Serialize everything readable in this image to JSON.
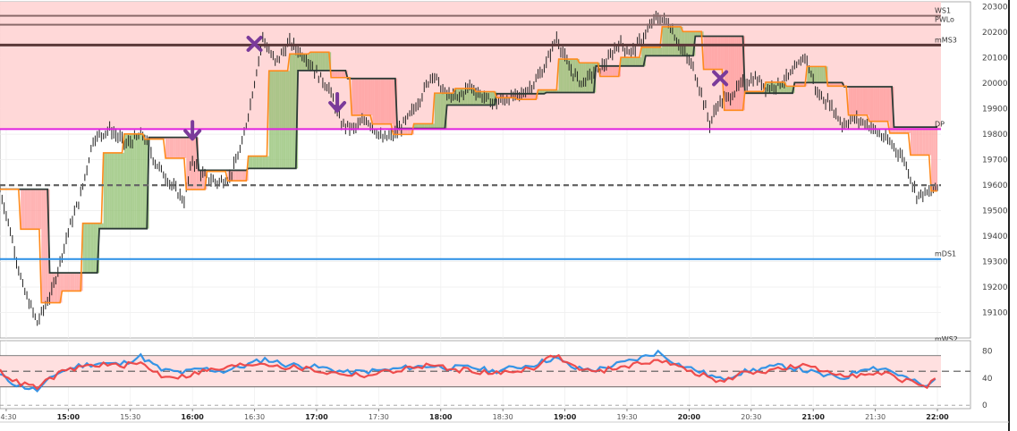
{
  "chart_data": [
    {
      "type": "candlestick",
      "title": "",
      "xlabel": "",
      "ylabel": "",
      "ylim": [
        19000,
        20320
      ],
      "y_ticks": [
        19100,
        19200,
        19300,
        19400,
        19500,
        19600,
        19700,
        19800,
        19900,
        20000,
        20100,
        20200,
        20300
      ],
      "x_ticks": [
        {
          "label": "14:30",
          "major": false
        },
        {
          "label": "15:00",
          "major": true
        },
        {
          "label": "15:30",
          "major": false
        },
        {
          "label": "16:00",
          "major": true
        },
        {
          "label": "16:30",
          "major": false
        },
        {
          "label": "17:00",
          "major": true
        },
        {
          "label": "17:30",
          "major": false
        },
        {
          "label": "18:00",
          "major": true
        },
        {
          "label": "18:30",
          "major": false
        },
        {
          "label": "19:00",
          "major": true
        },
        {
          "label": "19:30",
          "major": false
        },
        {
          "label": "20:00",
          "major": true
        },
        {
          "label": "20:30",
          "major": false
        },
        {
          "label": "21:00",
          "major": true
        },
        {
          "label": "21:30",
          "major": false
        },
        {
          "label": "22:00",
          "major": true
        }
      ],
      "price_path": [
        [
          "14:25",
          19650
        ],
        [
          "14:32",
          19420
        ],
        [
          "14:38",
          19200
        ],
        [
          "14:45",
          19060
        ],
        [
          "14:52",
          19180
        ],
        [
          "15:00",
          19420
        ],
        [
          "15:06",
          19560
        ],
        [
          "15:12",
          19780
        ],
        [
          "15:20",
          19820
        ],
        [
          "15:28",
          19760
        ],
        [
          "15:36",
          19800
        ],
        [
          "15:42",
          19690
        ],
        [
          "15:50",
          19600
        ],
        [
          "15:56",
          19540
        ],
        [
          "16:00",
          19700
        ],
        [
          "16:05",
          19640
        ],
        [
          "16:12",
          19610
        ],
        [
          "16:18",
          19630
        ],
        [
          "16:24",
          19760
        ],
        [
          "16:28",
          19920
        ],
        [
          "16:34",
          20180
        ],
        [
          "16:40",
          20080
        ],
        [
          "16:47",
          20160
        ],
        [
          "16:55",
          20100
        ],
        [
          "17:00",
          20040
        ],
        [
          "17:06",
          19980
        ],
        [
          "17:12",
          19840
        ],
        [
          "17:18",
          19820
        ],
        [
          "17:24",
          19860
        ],
        [
          "17:32",
          19780
        ],
        [
          "17:38",
          19800
        ],
        [
          "17:44",
          19860
        ],
        [
          "17:50",
          19940
        ],
        [
          "17:56",
          20040
        ],
        [
          "18:02",
          19960
        ],
        [
          "18:08",
          19940
        ],
        [
          "18:14",
          19990
        ],
        [
          "18:20",
          19950
        ],
        [
          "18:26",
          19920
        ],
        [
          "18:32",
          19940
        ],
        [
          "18:38",
          19950
        ],
        [
          "18:44",
          19990
        ],
        [
          "18:50",
          20060
        ],
        [
          "18:56",
          20180
        ],
        [
          "19:02",
          20060
        ],
        [
          "19:08",
          20000
        ],
        [
          "19:14",
          20040
        ],
        [
          "19:20",
          20080
        ],
        [
          "19:26",
          20160
        ],
        [
          "19:32",
          20120
        ],
        [
          "19:38",
          20180
        ],
        [
          "19:44",
          20260
        ],
        [
          "19:50",
          20240
        ],
        [
          "19:56",
          20140
        ],
        [
          "20:02",
          20060
        ],
        [
          "20:06",
          19960
        ],
        [
          "20:10",
          19840
        ],
        [
          "20:14",
          19920
        ],
        [
          "20:20",
          19950
        ],
        [
          "20:26",
          20000
        ],
        [
          "20:32",
          20020
        ],
        [
          "20:38",
          19980
        ],
        [
          "20:44",
          20000
        ],
        [
          "20:50",
          20040
        ],
        [
          "20:56",
          20110
        ],
        [
          "21:02",
          19960
        ],
        [
          "21:08",
          19920
        ],
        [
          "21:14",
          19840
        ],
        [
          "21:20",
          19860
        ],
        [
          "21:26",
          19840
        ],
        [
          "21:32",
          19800
        ],
        [
          "21:38",
          19760
        ],
        [
          "21:44",
          19700
        ],
        [
          "21:50",
          19560
        ],
        [
          "21:56",
          19570
        ],
        [
          "22:00",
          19590
        ]
      ],
      "fast_line_color": "#ff8a1c",
      "slow_line_color": "#2b3a35",
      "bull_fill": "#8fbf6f",
      "bear_fill": "#ff9a9a",
      "levels": [
        {
          "label": "WS1",
          "price": 20265,
          "color": "#8a6a6a",
          "style": "solid"
        },
        {
          "label": "PWLo",
          "price": 20230,
          "color": "#8a6a6a",
          "style": "solid"
        },
        {
          "label": "mMS3",
          "price": 20150,
          "color": "#5a3838",
          "style": "solid"
        },
        {
          "label": "DP",
          "price": 19820,
          "color": "#e020e0",
          "style": "solid"
        },
        {
          "label": "",
          "price": 19600,
          "color": "#666666",
          "style": "dashed"
        },
        {
          "label": "mDS1",
          "price": 19310,
          "color": "#2a8fe6",
          "style": "solid"
        },
        {
          "label": "mWS2",
          "price": 18975,
          "color": "#555566",
          "style": "solid"
        }
      ],
      "markers": [
        {
          "type": "cross",
          "time": "16:30",
          "price": 20155,
          "color": "#7a3a9a"
        },
        {
          "type": "down-arrow",
          "time": "16:00",
          "price": 19810,
          "color": "#7a3a9a"
        },
        {
          "type": "down-arrow",
          "time": "17:10",
          "price": 19920,
          "color": "#7a3a9a"
        },
        {
          "type": "cross",
          "time": "20:15",
          "price": 20020,
          "color": "#7a3a9a"
        }
      ]
    },
    {
      "type": "line",
      "title": "",
      "ylim": [
        -5,
        95
      ],
      "y_ticks": [
        0,
        40,
        80
      ],
      "levels": [
        73,
        50,
        27
      ],
      "series": [
        {
          "color": "#2a8fe6",
          "points": [
            [
              "14:25",
              48
            ],
            [
              "14:35",
              30
            ],
            [
              "14:45",
              22
            ],
            [
              "14:55",
              48
            ],
            [
              "15:05",
              58
            ],
            [
              "15:15",
              62
            ],
            [
              "15:25",
              60
            ],
            [
              "15:35",
              72
            ],
            [
              "15:45",
              52
            ],
            [
              "15:55",
              48
            ],
            [
              "16:05",
              54
            ],
            [
              "16:15",
              50
            ],
            [
              "16:25",
              58
            ],
            [
              "16:35",
              68
            ],
            [
              "16:45",
              60
            ],
            [
              "16:55",
              58
            ],
            [
              "17:05",
              54
            ],
            [
              "17:15",
              48
            ],
            [
              "17:25",
              50
            ],
            [
              "17:35",
              52
            ],
            [
              "17:45",
              56
            ],
            [
              "17:55",
              58
            ],
            [
              "18:05",
              55
            ],
            [
              "18:15",
              56
            ],
            [
              "18:25",
              50
            ],
            [
              "18:35",
              55
            ],
            [
              "18:45",
              60
            ],
            [
              "18:55",
              70
            ],
            [
              "19:05",
              54
            ],
            [
              "19:15",
              52
            ],
            [
              "19:25",
              60
            ],
            [
              "19:35",
              68
            ],
            [
              "19:45",
              78
            ],
            [
              "19:55",
              60
            ],
            [
              "20:05",
              50
            ],
            [
              "20:15",
              38
            ],
            [
              "20:25",
              48
            ],
            [
              "20:35",
              54
            ],
            [
              "20:45",
              58
            ],
            [
              "20:55",
              52
            ],
            [
              "21:05",
              44
            ],
            [
              "21:15",
              40
            ],
            [
              "21:25",
              56
            ],
            [
              "21:35",
              54
            ],
            [
              "21:45",
              40
            ],
            [
              "21:55",
              26
            ],
            [
              "22:00",
              42
            ]
          ]
        },
        {
          "color": "#ee4444",
          "points": [
            [
              "14:25",
              54
            ],
            [
              "14:35",
              34
            ],
            [
              "14:45",
              26
            ],
            [
              "14:55",
              46
            ],
            [
              "15:05",
              56
            ],
            [
              "15:15",
              60
            ],
            [
              "15:25",
              58
            ],
            [
              "15:35",
              62
            ],
            [
              "15:45",
              44
            ],
            [
              "15:55",
              42
            ],
            [
              "16:05",
              50
            ],
            [
              "16:15",
              54
            ],
            [
              "16:25",
              60
            ],
            [
              "16:35",
              62
            ],
            [
              "16:45",
              56
            ],
            [
              "16:55",
              54
            ],
            [
              "17:05",
              48
            ],
            [
              "17:15",
              46
            ],
            [
              "17:25",
              44
            ],
            [
              "17:35",
              50
            ],
            [
              "17:45",
              54
            ],
            [
              "17:55",
              60
            ],
            [
              "18:05",
              52
            ],
            [
              "18:15",
              52
            ],
            [
              "18:25",
              46
            ],
            [
              "18:35",
              50
            ],
            [
              "18:45",
              56
            ],
            [
              "18:55",
              74
            ],
            [
              "19:05",
              56
            ],
            [
              "19:15",
              48
            ],
            [
              "19:25",
              56
            ],
            [
              "19:35",
              60
            ],
            [
              "19:45",
              68
            ],
            [
              "19:55",
              56
            ],
            [
              "20:05",
              46
            ],
            [
              "20:15",
              34
            ],
            [
              "20:25",
              46
            ],
            [
              "20:35",
              50
            ],
            [
              "20:45",
              54
            ],
            [
              "20:55",
              58
            ],
            [
              "21:05",
              50
            ],
            [
              "21:15",
              46
            ],
            [
              "21:25",
              44
            ],
            [
              "21:35",
              46
            ],
            [
              "21:45",
              36
            ],
            [
              "21:55",
              28
            ],
            [
              "22:00",
              46
            ]
          ]
        }
      ]
    }
  ]
}
